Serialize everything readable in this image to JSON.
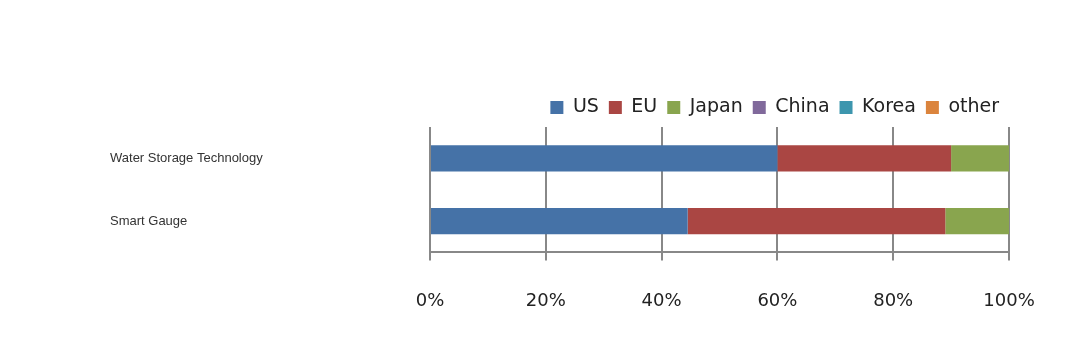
{
  "chart_data": {
    "type": "bar",
    "orientation": "horizontal",
    "stacked": true,
    "grid": true,
    "legend": "top",
    "categories": [
      "Water Storage Technology",
      "Smart Gauge"
    ],
    "series": [
      {
        "name": "US",
        "color": "#4572A7",
        "values": [
          60,
          44.5
        ]
      },
      {
        "name": "EU",
        "color": "#AA4643",
        "values": [
          30,
          44.5
        ]
      },
      {
        "name": "Japan",
        "color": "#89A54E",
        "values": [
          10,
          11
        ]
      },
      {
        "name": "China",
        "color": "#80699B",
        "values": [
          0,
          0
        ]
      },
      {
        "name": "Korea",
        "color": "#3D96AE",
        "values": [
          0,
          0
        ]
      },
      {
        "name": "other",
        "color": "#DB843D",
        "values": [
          0,
          0
        ]
      }
    ],
    "xlim": [
      0,
      100
    ],
    "xticks": [
      {
        "value": 0,
        "label": "0%"
      },
      {
        "value": 20,
        "label": "20%"
      },
      {
        "value": 40,
        "label": "40%"
      },
      {
        "value": 60,
        "label": "60%"
      },
      {
        "value": 80,
        "label": "80%"
      },
      {
        "value": 100,
        "label": "100%"
      }
    ]
  }
}
